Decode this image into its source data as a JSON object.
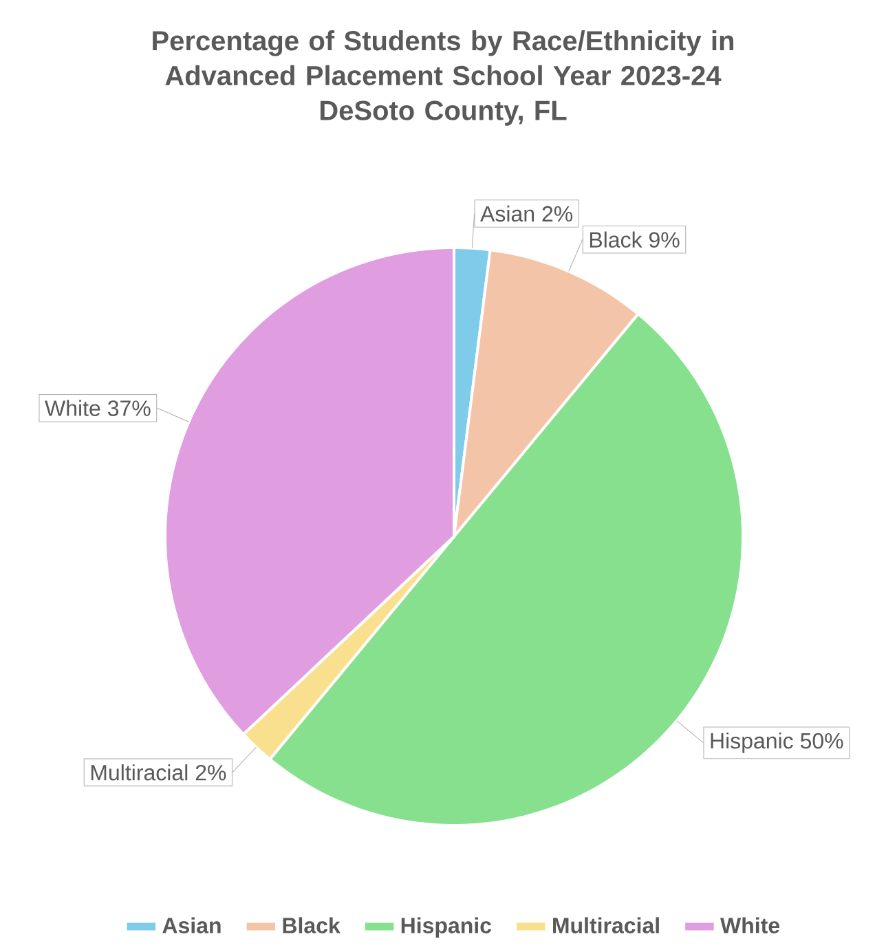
{
  "chart_data": {
    "type": "pie",
    "title": "Percentage of Students by Race/Ethnicity in Advanced Placement School Year 2023-24",
    "subtitle": "DeSoto County, FL",
    "categories": [
      "Asian",
      "Black",
      "Hispanic",
      "Multiracial",
      "White"
    ],
    "values": [
      2,
      9,
      50,
      2,
      37
    ],
    "value_labels": [
      "2%",
      "9%",
      "50%",
      "2%",
      "37%"
    ],
    "colors": [
      "#7fcbea",
      "#f4c4a8",
      "#86e08e",
      "#f9e08e",
      "#e09ee0"
    ],
    "legend": "bottom"
  }
}
